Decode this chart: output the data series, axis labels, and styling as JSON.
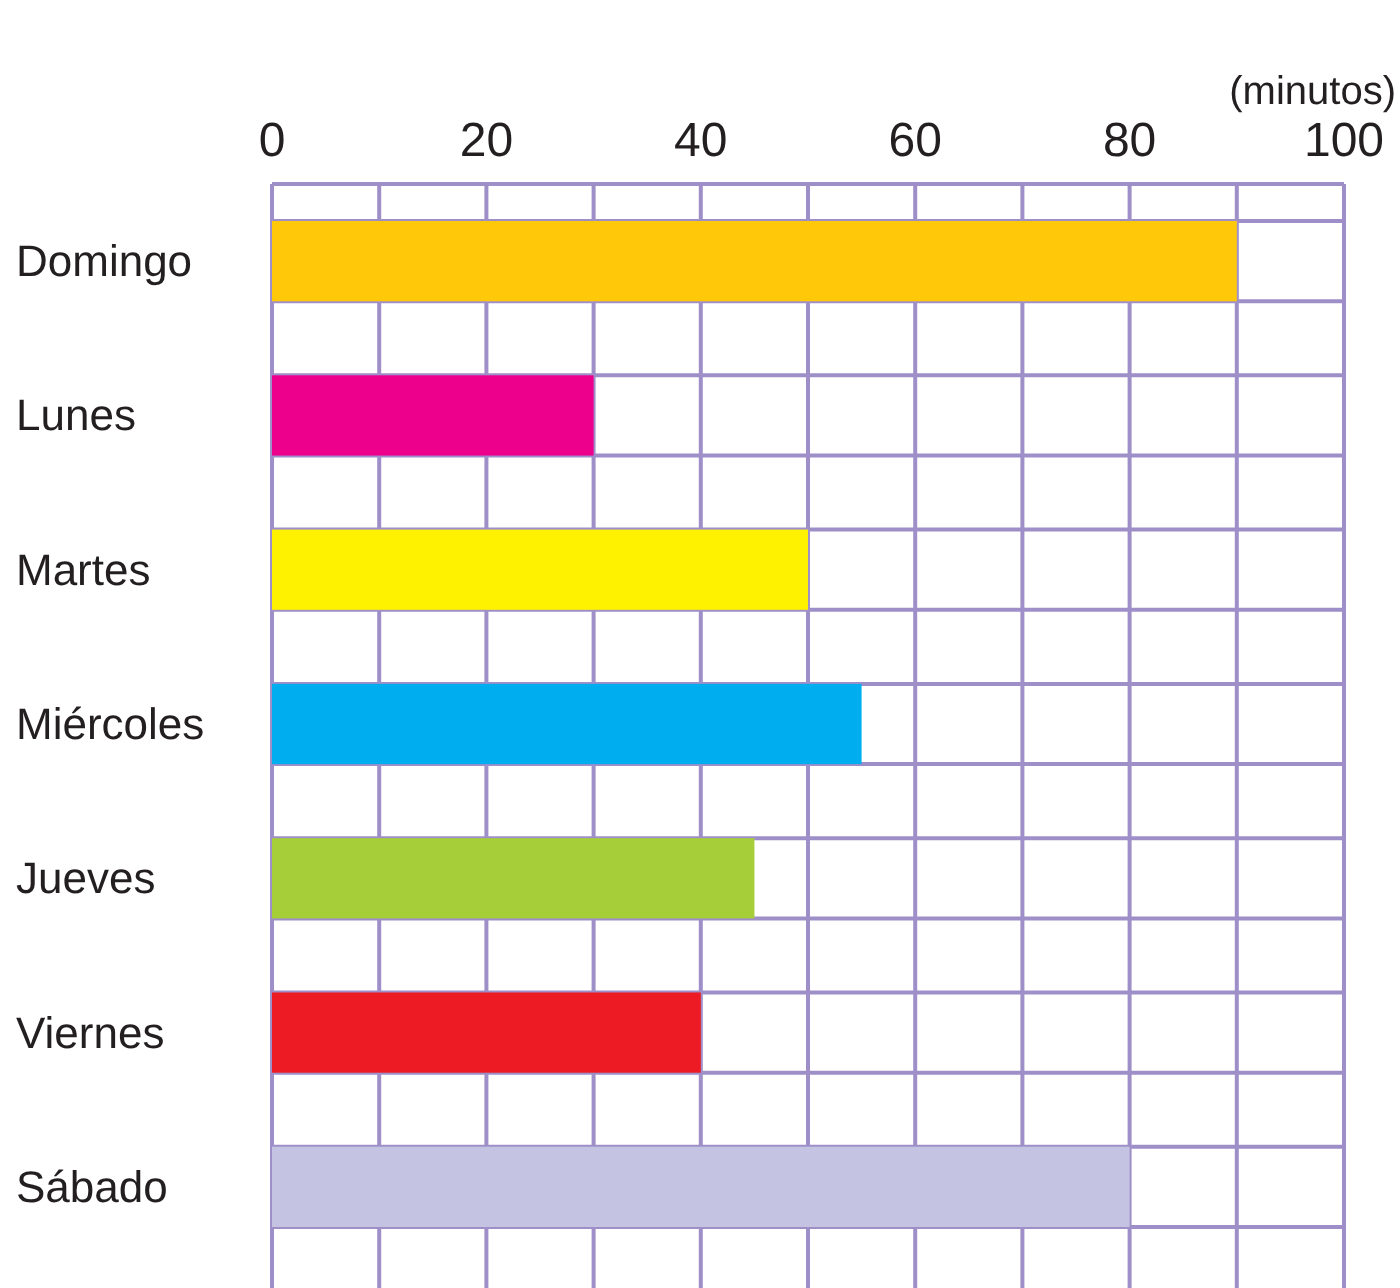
{
  "chart_data": {
    "type": "bar",
    "orientation": "horizontal",
    "xlabel": "(minutos)",
    "categories": [
      "Domingo",
      "Lunes",
      "Martes",
      "Miércoles",
      "Jueves",
      "Viernes",
      "Sábado"
    ],
    "values": [
      90,
      30,
      50,
      55,
      45,
      40,
      80
    ],
    "colors": [
      "#ffc90a",
      "#ec008c",
      "#fff200",
      "#00aeef",
      "#a6ce39",
      "#ed1c24",
      "#c5c3e2"
    ],
    "xlim": [
      0,
      100
    ],
    "xticks": [
      0,
      20,
      40,
      60,
      80,
      100
    ],
    "grid": true
  }
}
